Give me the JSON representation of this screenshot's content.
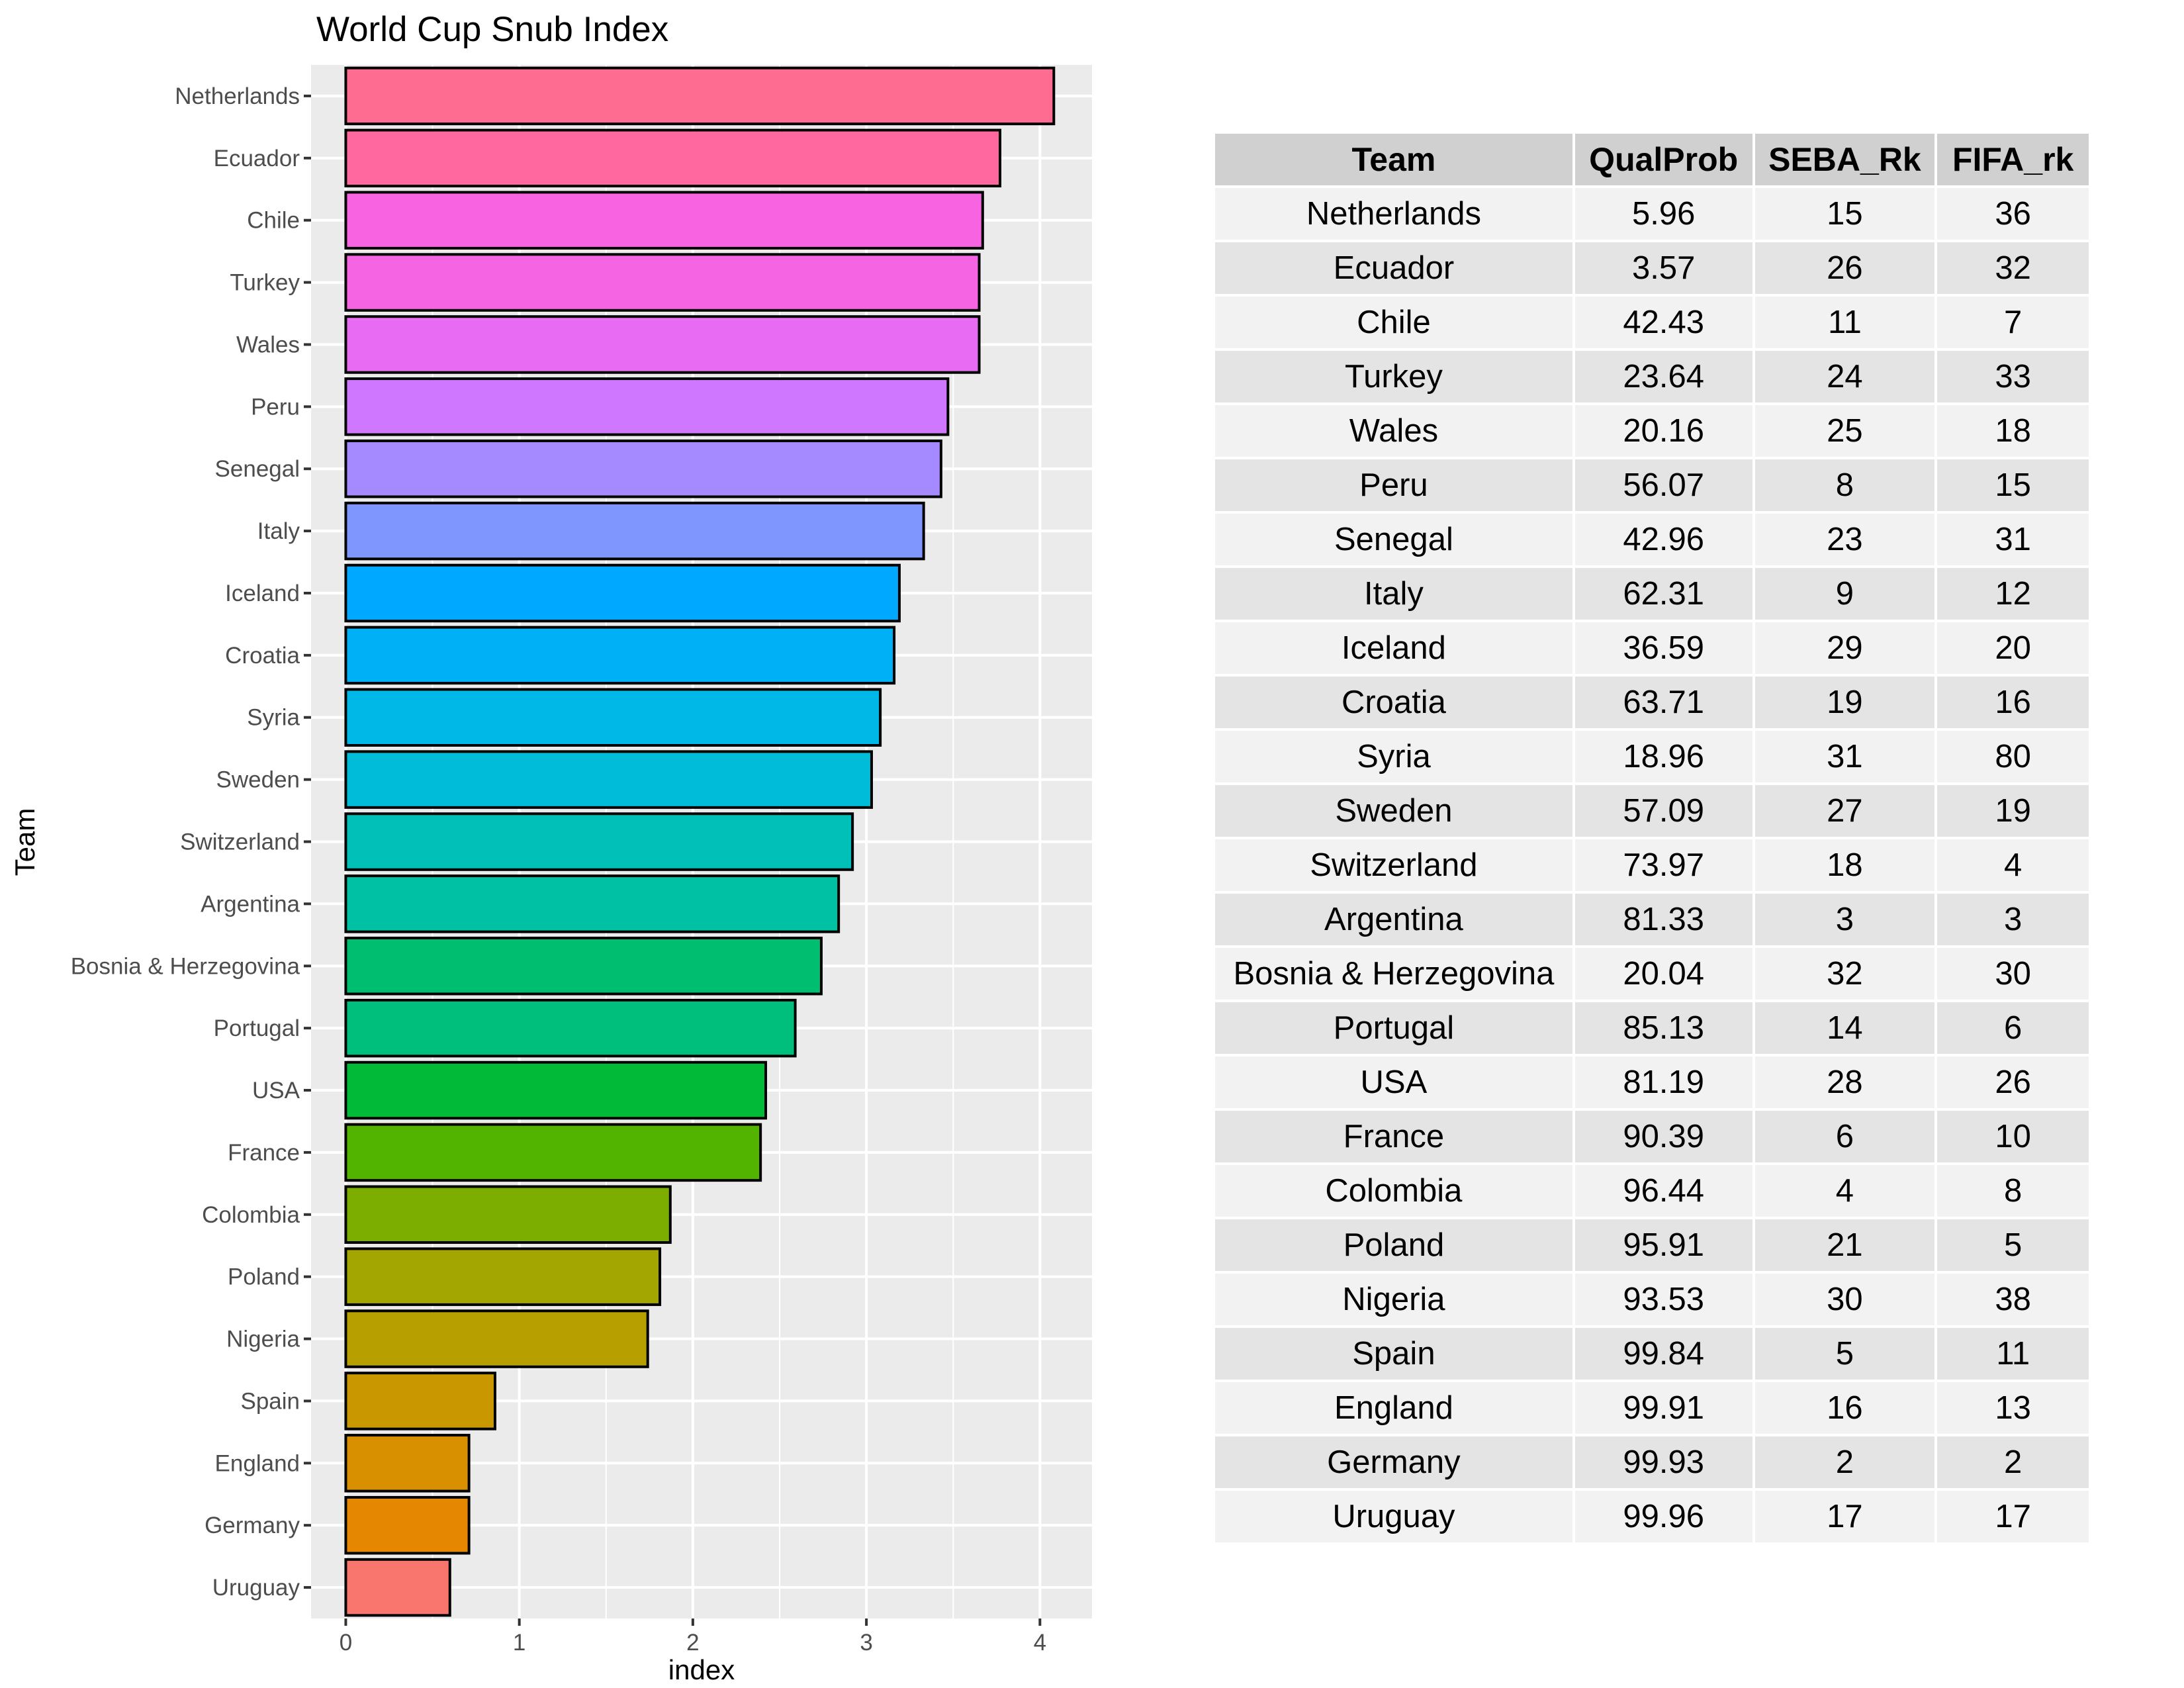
{
  "chart_data": {
    "type": "bar",
    "orientation": "horizontal",
    "title": "World Cup Snub Index",
    "xlabel": "index",
    "ylabel": "Team",
    "xlim": [
      -0.2,
      4.3
    ],
    "xticks": [
      0,
      1,
      2,
      3,
      4
    ],
    "grid": true,
    "categories": [
      "Netherlands",
      "Ecuador",
      "Chile",
      "Turkey",
      "Wales",
      "Peru",
      "Senegal",
      "Italy",
      "Iceland",
      "Croatia",
      "Syria",
      "Sweden",
      "Switzerland",
      "Argentina",
      "Bosnia & Herzegovina",
      "Portugal",
      "USA",
      "France",
      "Colombia",
      "Poland",
      "Nigeria",
      "Spain",
      "England",
      "Germany",
      "Uruguay"
    ],
    "values": [
      4.08,
      3.77,
      3.67,
      3.65,
      3.65,
      3.47,
      3.43,
      3.33,
      3.19,
      3.16,
      3.08,
      3.03,
      2.92,
      2.84,
      2.74,
      2.59,
      2.42,
      2.39,
      1.87,
      1.81,
      1.74,
      0.86,
      0.71,
      0.71,
      0.6
    ],
    "colors": [
      "#FF6C91",
      "#FF689F",
      "#F763E0",
      "#F564E3",
      "#E76BF3",
      "#CF78FF",
      "#A58AFF",
      "#7F96FF",
      "#00A9FF",
      "#00B0F6",
      "#00B8E7",
      "#00BCD8",
      "#00C0B8",
      "#00C1A3",
      "#00BE70",
      "#00BF7D",
      "#00BA38",
      "#53B400",
      "#7CAE00",
      "#A3A500",
      "#B79F00",
      "#C99800",
      "#D89000",
      "#E58700",
      "#F8766D"
    ]
  },
  "table": {
    "headers": [
      "Team",
      "QualProb",
      "SEBA_Rk",
      "FIFA_rk"
    ],
    "rows": [
      [
        "Netherlands",
        "5.96",
        "15",
        "36"
      ],
      [
        "Ecuador",
        "3.57",
        "26",
        "32"
      ],
      [
        "Chile",
        "42.43",
        "11",
        "7"
      ],
      [
        "Turkey",
        "23.64",
        "24",
        "33"
      ],
      [
        "Wales",
        "20.16",
        "25",
        "18"
      ],
      [
        "Peru",
        "56.07",
        "8",
        "15"
      ],
      [
        "Senegal",
        "42.96",
        "23",
        "31"
      ],
      [
        "Italy",
        "62.31",
        "9",
        "12"
      ],
      [
        "Iceland",
        "36.59",
        "29",
        "20"
      ],
      [
        "Croatia",
        "63.71",
        "19",
        "16"
      ],
      [
        "Syria",
        "18.96",
        "31",
        "80"
      ],
      [
        "Sweden",
        "57.09",
        "27",
        "19"
      ],
      [
        "Switzerland",
        "73.97",
        "18",
        "4"
      ],
      [
        "Argentina",
        "81.33",
        "3",
        "3"
      ],
      [
        "Bosnia & Herzegovina",
        "20.04",
        "32",
        "30"
      ],
      [
        "Portugal",
        "85.13",
        "14",
        "6"
      ],
      [
        "USA",
        "81.19",
        "28",
        "26"
      ],
      [
        "France",
        "90.39",
        "6",
        "10"
      ],
      [
        "Colombia",
        "96.44",
        "4",
        "8"
      ],
      [
        "Poland",
        "95.91",
        "21",
        "5"
      ],
      [
        "Nigeria",
        "93.53",
        "30",
        "38"
      ],
      [
        "Spain",
        "99.84",
        "5",
        "11"
      ],
      [
        "England",
        "99.91",
        "16",
        "13"
      ],
      [
        "Germany",
        "99.93",
        "2",
        "2"
      ],
      [
        "Uruguay",
        "99.96",
        "17",
        "17"
      ]
    ]
  }
}
